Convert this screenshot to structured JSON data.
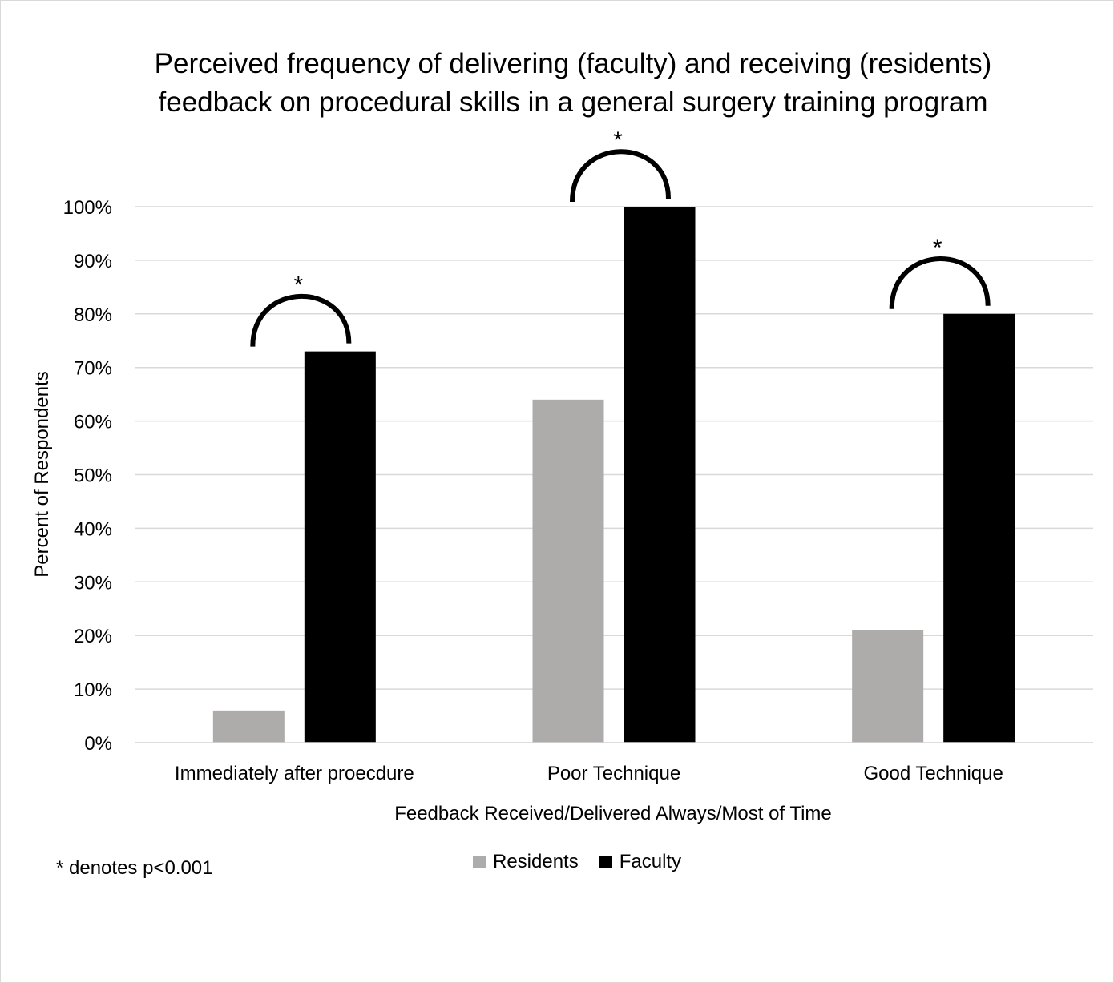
{
  "chart_data": {
    "type": "bar",
    "title_lines": [
      "Perceived frequency of delivering (faculty) and receiving (residents)",
      "feedback on procedural skills in a general surgery training program"
    ],
    "xlabel": "Feedback Received/Delivered Always/Most of Time",
    "ylabel": "Percent of Respondents",
    "categories": [
      "Immediately after proecdure",
      "Poor Technique",
      "Good Technique"
    ],
    "series": [
      {
        "name": "Residents",
        "color": "#aeabab",
        "values": [
          6,
          64,
          21
        ]
      },
      {
        "name": "Faculty",
        "color": "#000000",
        "values": [
          73,
          100,
          80
        ]
      }
    ],
    "ylim": [
      0,
      100
    ],
    "yticks": [
      0,
      10,
      20,
      30,
      40,
      50,
      60,
      70,
      80,
      90,
      100
    ],
    "ytick_labels": [
      "0%",
      "10%",
      "20%",
      "30%",
      "40%",
      "50%",
      "60%",
      "70%",
      "80%",
      "90%",
      "100%"
    ],
    "grid": true,
    "gridline_color": "#d9d9d9",
    "legend_position": "bottom",
    "significance_marker": "*",
    "significant_categories": [
      0,
      1,
      2
    ],
    "footnote": "* denotes p<0.001"
  }
}
